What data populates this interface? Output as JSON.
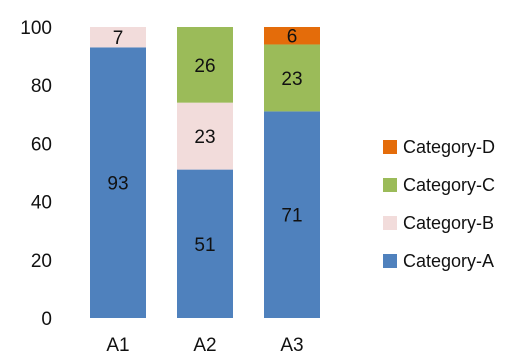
{
  "chart_data": {
    "type": "bar",
    "stacked": true,
    "categories": [
      "A1",
      "A2",
      "A3"
    ],
    "series": [
      {
        "name": "Category-A",
        "values": [
          93,
          51,
          71
        ],
        "color": "#4f81bd"
      },
      {
        "name": "Category-B",
        "values": [
          7,
          23,
          0
        ],
        "color": "#f2dcdb"
      },
      {
        "name": "Category-C",
        "values": [
          0,
          26,
          23
        ],
        "color": "#9bbb59"
      },
      {
        "name": "Category-D",
        "values": [
          0,
          0,
          6
        ],
        "color": "#e46c0a"
      }
    ],
    "y_ticks": [
      "0",
      "20",
      "40",
      "60",
      "80",
      "100"
    ],
    "ylim": [
      0,
      100
    ],
    "grid": false,
    "legend_position": "right",
    "legend_order": [
      "Category-D",
      "Category-C",
      "Category-B",
      "Category-A"
    ]
  }
}
